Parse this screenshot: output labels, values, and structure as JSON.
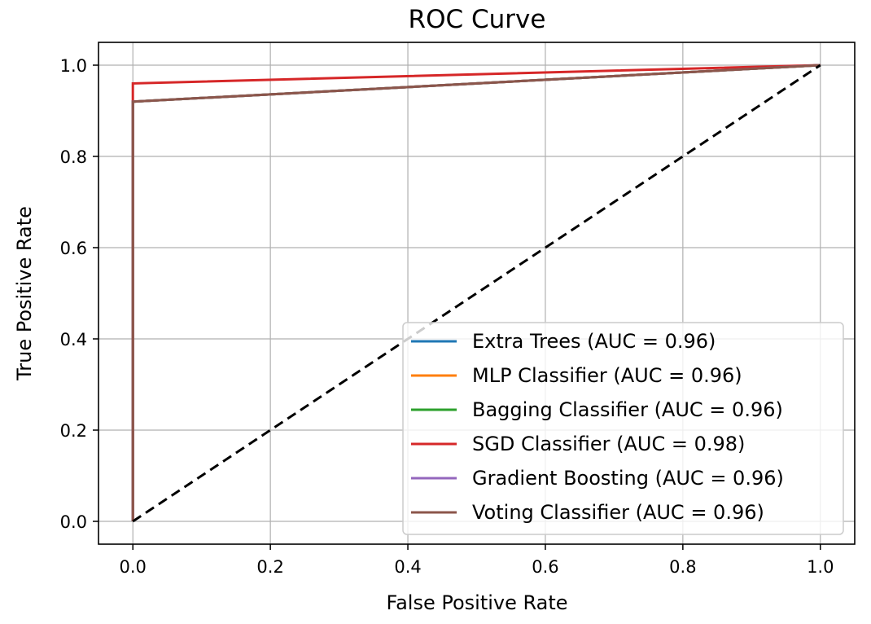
{
  "chart_data": {
    "type": "line",
    "title": "ROC Curve",
    "xlabel": "False Positive Rate",
    "ylabel": "True Positive Rate",
    "xlim": [
      -0.05,
      1.05
    ],
    "ylim": [
      -0.05,
      1.05
    ],
    "x_ticks": [
      0.0,
      0.2,
      0.4,
      0.6,
      0.8,
      1.0
    ],
    "y_ticks": [
      0.0,
      0.2,
      0.4,
      0.6,
      0.8,
      1.0
    ],
    "x_tick_labels": [
      "0.0",
      "0.2",
      "0.4",
      "0.6",
      "0.8",
      "1.0"
    ],
    "y_tick_labels": [
      "0.0",
      "0.2",
      "0.4",
      "0.6",
      "0.8",
      "1.0"
    ],
    "grid": true,
    "legend_position": "lower-right",
    "series": [
      {
        "name": "Extra Trees (AUC = 0.96)",
        "color": "#1f77b4",
        "x": [
          0,
          0,
          1
        ],
        "y": [
          0,
          0.92,
          1
        ]
      },
      {
        "name": "MLP Classifier (AUC = 0.96)",
        "color": "#ff7f0e",
        "x": [
          0,
          0,
          1
        ],
        "y": [
          0,
          0.92,
          1
        ]
      },
      {
        "name": "Bagging Classifier (AUC = 0.96)",
        "color": "#2ca02c",
        "x": [
          0,
          0,
          1
        ],
        "y": [
          0,
          0.92,
          1
        ]
      },
      {
        "name": "SGD Classifier (AUC = 0.98)",
        "color": "#d62728",
        "x": [
          0,
          0,
          1
        ],
        "y": [
          0,
          0.96,
          1
        ]
      },
      {
        "name": "Gradient Boosting (AUC = 0.96)",
        "color": "#9467bd",
        "x": [
          0,
          0,
          1
        ],
        "y": [
          0,
          0.92,
          1
        ]
      },
      {
        "name": "Voting Classifier (AUC = 0.96)",
        "color": "#8c564b",
        "x": [
          0,
          0,
          1
        ],
        "y": [
          0,
          0.92,
          1
        ]
      }
    ],
    "reference_line": {
      "x": [
        0,
        1
      ],
      "y": [
        0,
        1
      ],
      "color": "#000000",
      "style": "dashed"
    }
  }
}
